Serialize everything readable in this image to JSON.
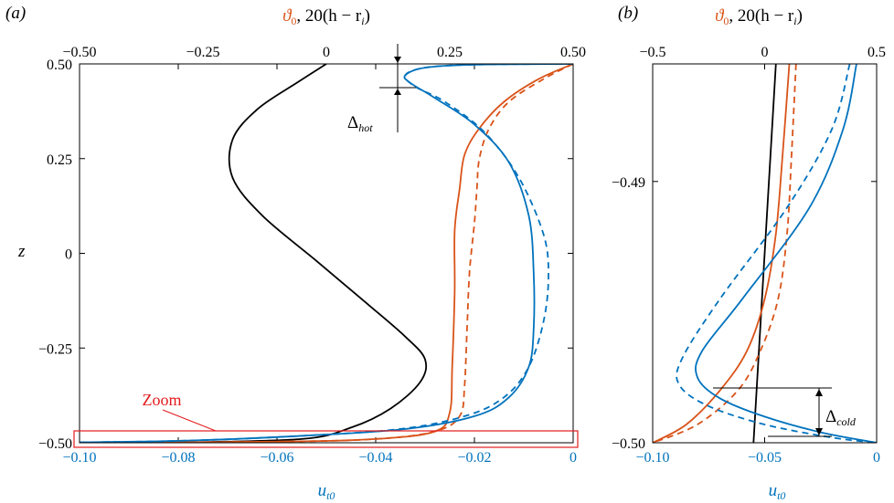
{
  "colors": {
    "black": "#000000",
    "orange": "#d95319",
    "blue": "#0072bd",
    "red": "#e41a1c"
  },
  "chart_data": [
    {
      "panel_label": "(a)",
      "type": "line",
      "ylabel": "z",
      "ylim": [
        -0.5,
        0.5
      ],
      "yticks": [
        "0.50",
        "0.25",
        "0",
        "−0.25",
        "−0.50"
      ],
      "xlabel_bottom": "u",
      "xlabel_bottom_sub": "t0",
      "xlim_bottom": [
        -0.1,
        0
      ],
      "xticks_bottom": [
        "−0.10",
        "−0.08",
        "−0.06",
        "−0.04",
        "−0.02",
        "0"
      ],
      "xlabel_top_sym": "ϑ",
      "xlabel_top_sub": "0",
      "xlabel_top_rest": ", 20(h − r",
      "xlabel_top_sub2": "i",
      "xlabel_top_close": ")",
      "xlim_top": [
        -0.5,
        0.5
      ],
      "xticks_top": [
        "−0.50",
        "−0.25",
        "0",
        "0.25",
        "0.50"
      ],
      "annotations": {
        "delta_hot": "Δ",
        "delta_hot_sub": "hot",
        "zoom": "Zoom"
      },
      "series": [
        {
          "axis": "top",
          "color": "black",
          "style": "solid",
          "points": [
            [
              0,
              0.5
            ],
            [
              -0.06,
              0.45
            ],
            [
              -0.14,
              0.38
            ],
            [
              -0.19,
              0.3
            ],
            [
              -0.19,
              0.2
            ],
            [
              -0.13,
              0.1
            ],
            [
              -0.02,
              -0.02
            ],
            [
              0.08,
              -0.13
            ],
            [
              0.16,
              -0.22
            ],
            [
              0.2,
              -0.28
            ],
            [
              0.19,
              -0.34
            ],
            [
              0.13,
              -0.41
            ],
            [
              0.05,
              -0.46
            ],
            [
              -0.05,
              -0.49
            ],
            [
              -0.3,
              -0.499
            ],
            [
              -0.5,
              -0.5
            ]
          ]
        },
        {
          "axis": "top",
          "color": "orange",
          "style": "solid",
          "points": [
            [
              0.5,
              0.5
            ],
            [
              0.43,
              0.46
            ],
            [
              0.36,
              0.4
            ],
            [
              0.31,
              0.33
            ],
            [
              0.28,
              0.26
            ],
            [
              0.27,
              0.17
            ],
            [
              0.26,
              0.06
            ],
            [
              0.26,
              -0.1
            ],
            [
              0.255,
              -0.3
            ],
            [
              0.25,
              -0.42
            ],
            [
              0.22,
              -0.47
            ],
            [
              0.1,
              -0.49
            ],
            [
              -0.1,
              -0.497
            ],
            [
              -0.5,
              -0.5
            ]
          ]
        },
        {
          "axis": "top",
          "color": "orange",
          "style": "dashed",
          "points": [
            [
              0.5,
              0.5
            ],
            [
              0.44,
              0.46
            ],
            [
              0.37,
              0.4
            ],
            [
              0.33,
              0.33
            ],
            [
              0.31,
              0.25
            ],
            [
              0.305,
              0.17
            ],
            [
              0.3,
              0.08
            ],
            [
              0.29,
              -0.05
            ],
            [
              0.285,
              -0.2
            ],
            [
              0.28,
              -0.35
            ],
            [
              0.27,
              -0.43
            ],
            [
              0.22,
              -0.47
            ],
            [
              0.1,
              -0.49
            ],
            [
              -0.1,
              -0.497
            ],
            [
              -0.5,
              -0.5
            ]
          ]
        },
        {
          "axis": "bottom",
          "color": "blue",
          "style": "solid",
          "points": [
            [
              0,
              0.5
            ],
            [
              -0.02,
              0.498
            ],
            [
              -0.03,
              0.49
            ],
            [
              -0.034,
              0.47
            ],
            [
              -0.033,
              0.45
            ],
            [
              -0.028,
              0.41
            ],
            [
              -0.02,
              0.34
            ],
            [
              -0.013,
              0.24
            ],
            [
              -0.009,
              0.1
            ],
            [
              -0.008,
              -0.05
            ],
            [
              -0.008,
              -0.2
            ],
            [
              -0.009,
              -0.3
            ],
            [
              -0.013,
              -0.38
            ],
            [
              -0.02,
              -0.43
            ],
            [
              -0.035,
              -0.465
            ],
            [
              -0.06,
              -0.485
            ],
            [
              -0.08,
              -0.495
            ],
            [
              -0.1,
              -0.499
            ]
          ]
        },
        {
          "axis": "bottom",
          "color": "blue",
          "style": "dashed",
          "points": [
            [
              0,
              0.5
            ],
            [
              -0.02,
              0.498
            ],
            [
              -0.03,
              0.49
            ],
            [
              -0.034,
              0.47
            ],
            [
              -0.032,
              0.44
            ],
            [
              -0.026,
              0.4
            ],
            [
              -0.018,
              0.32
            ],
            [
              -0.011,
              0.2
            ],
            [
              -0.006,
              0.05
            ],
            [
              -0.005,
              -0.06
            ],
            [
              -0.006,
              -0.18
            ],
            [
              -0.009,
              -0.3
            ],
            [
              -0.014,
              -0.38
            ],
            [
              -0.022,
              -0.43
            ],
            [
              -0.036,
              -0.465
            ],
            [
              -0.06,
              -0.485
            ],
            [
              -0.08,
              -0.495
            ],
            [
              -0.1,
              -0.499
            ]
          ]
        }
      ]
    },
    {
      "panel_label": "(b)",
      "type": "line",
      "ylim": [
        -0.5,
        -0.4855
      ],
      "yticks": [
        "−0.49",
        "−0.50"
      ],
      "ytick_values": [
        -0.49,
        -0.5
      ],
      "xlabel_bottom": "u",
      "xlabel_bottom_sub": "t0",
      "xlim_bottom": [
        -0.1,
        0
      ],
      "xticks_bottom": [
        "−0.10",
        "−0.05",
        "0"
      ],
      "xlabel_top_sym": "ϑ",
      "xlabel_top_sub": "0",
      "xlabel_top_rest": ", 20(h − r",
      "xlabel_top_sub2": "i",
      "xlabel_top_close": ")",
      "xlim_top": [
        -0.5,
        0.5
      ],
      "xticks_top": [
        "−0.5",
        "0",
        "0.5"
      ],
      "annotations": {
        "delta_cold": "Δ",
        "delta_cold_sub": "cold"
      },
      "series": [
        {
          "axis": "top",
          "color": "black",
          "style": "solid",
          "points": [
            [
              0.05,
              -0.4855
            ],
            [
              -0.05,
              -0.5
            ]
          ]
        },
        {
          "axis": "top",
          "color": "orange",
          "style": "solid",
          "points": [
            [
              0.11,
              -0.4855
            ],
            [
              0.08,
              -0.489
            ],
            [
              0.05,
              -0.492
            ],
            [
              0.0,
              -0.4945
            ],
            [
              -0.08,
              -0.4965
            ],
            [
              -0.2,
              -0.498
            ],
            [
              -0.35,
              -0.4993
            ],
            [
              -0.5,
              -0.5
            ]
          ]
        },
        {
          "axis": "top",
          "color": "orange",
          "style": "dashed",
          "points": [
            [
              0.14,
              -0.4855
            ],
            [
              0.12,
              -0.489
            ],
            [
              0.1,
              -0.492
            ],
            [
              0.06,
              -0.4945
            ],
            [
              -0.02,
              -0.4965
            ],
            [
              -0.12,
              -0.498
            ],
            [
              -0.3,
              -0.4993
            ],
            [
              -0.5,
              -0.5
            ]
          ]
        },
        {
          "axis": "bottom",
          "color": "blue",
          "style": "solid",
          "points": [
            [
              -0.009,
              -0.4855
            ],
            [
              -0.015,
              -0.488
            ],
            [
              -0.03,
              -0.491
            ],
            [
              -0.06,
              -0.4945
            ],
            [
              -0.078,
              -0.4965
            ],
            [
              -0.08,
              -0.4975
            ],
            [
              -0.07,
              -0.4983
            ],
            [
              -0.05,
              -0.499
            ],
            [
              -0.025,
              -0.4996
            ],
            [
              0,
              -0.5
            ]
          ]
        },
        {
          "axis": "bottom",
          "color": "blue",
          "style": "dashed",
          "points": [
            [
              -0.012,
              -0.4855
            ],
            [
              -0.02,
              -0.488
            ],
            [
              -0.04,
              -0.491
            ],
            [
              -0.07,
              -0.4945
            ],
            [
              -0.087,
              -0.4968
            ],
            [
              -0.088,
              -0.4978
            ],
            [
              -0.075,
              -0.4986
            ],
            [
              -0.05,
              -0.4993
            ],
            [
              -0.02,
              -0.4998
            ],
            [
              0,
              -0.5
            ]
          ]
        }
      ]
    }
  ]
}
